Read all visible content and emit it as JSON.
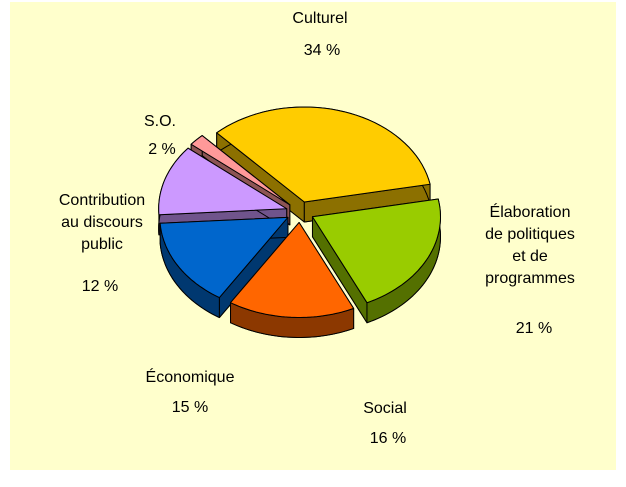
{
  "chart_data": {
    "type": "pie3d",
    "categories": [
      "Culturel",
      "Élaboration\nde politiques\net de\nprogrammes",
      "Social",
      "Économique",
      "Contribution\nau discours\npublic",
      "S.O."
    ],
    "values": [
      34,
      21,
      16,
      15,
      12,
      2
    ],
    "value_labels": [
      "34 %",
      "21 %",
      "16 %",
      "15 %",
      "12 %",
      "2 %"
    ],
    "colors": [
      "#ffcc00",
      "#99cc00",
      "#ff6600",
      "#0066cc",
      "#cc99ff",
      "#ff9999"
    ]
  }
}
